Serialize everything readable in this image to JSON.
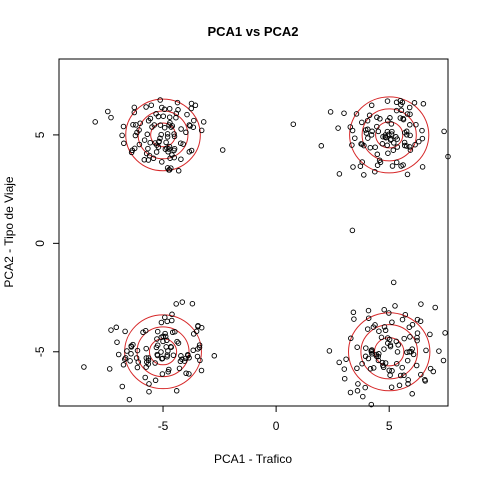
{
  "chart_data": {
    "type": "scatter",
    "title": "PCA1 vs PCA2",
    "xlabel": "PCA1 - Trafico",
    "ylabel": "PCA2 - Tipo de Viaje",
    "xlim": [
      -9.6,
      7.6
    ],
    "ylim": [
      -7.5,
      8.5
    ],
    "xticks": [
      -5,
      0,
      5
    ],
    "yticks": [
      -5,
      0,
      5
    ],
    "grid": false,
    "colors": {
      "points": "#000000",
      "contours": "#d62728",
      "frame": "#000000"
    },
    "clusters": [
      {
        "center": [
          -5,
          5
        ],
        "spread": 0.95,
        "count": 95
      },
      {
        "center": [
          5,
          5
        ],
        "spread": 1.05,
        "count": 95
      },
      {
        "center": [
          -5,
          -5
        ],
        "spread": 0.95,
        "count": 95
      },
      {
        "center": [
          5,
          -5
        ],
        "spread": 1.05,
        "count": 95
      }
    ],
    "outliers": [
      [
        -8.0,
        5.6
      ],
      [
        -7.3,
        5.8
      ],
      [
        2.0,
        4.5
      ],
      [
        2.8,
        3.2
      ],
      [
        3.0,
        6.0
      ],
      [
        7.6,
        4.0
      ],
      [
        -3.2,
        5.6
      ],
      [
        -8.5,
        -5.7
      ],
      [
        -7.3,
        -4.0
      ],
      [
        7.4,
        -5.4
      ],
      [
        5.2,
        -1.8
      ],
      [
        6.4,
        -2.8
      ],
      [
        -6.8,
        -6.6
      ],
      [
        3.6,
        -6.8
      ],
      [
        6.8,
        -4.2
      ]
    ],
    "contours": [
      {
        "center": [
          -5,
          5
        ],
        "radii": [
          0.55,
          1.1,
          1.65
        ]
      },
      {
        "center": [
          5,
          5
        ],
        "radii": [
          0.6,
          1.2,
          1.75
        ]
      },
      {
        "center": [
          -5,
          -5
        ],
        "radii": [
          0.6,
          1.15,
          1.7
        ]
      },
      {
        "center": [
          5,
          -5
        ],
        "radii": [
          0.65,
          1.25,
          1.8
        ]
      }
    ]
  }
}
